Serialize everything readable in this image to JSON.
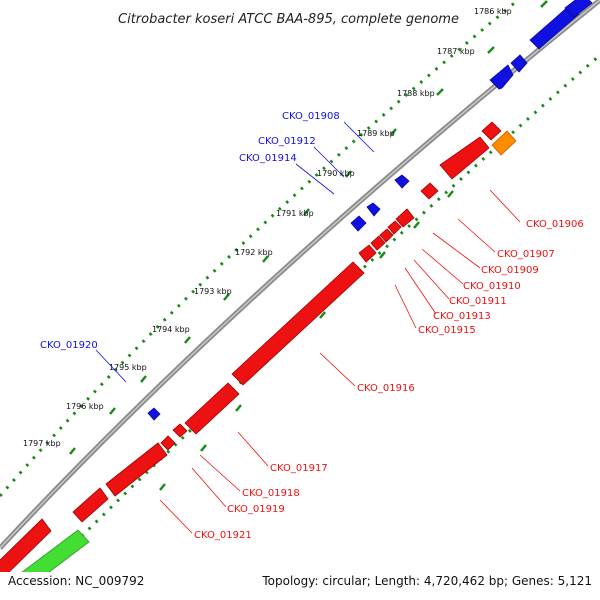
{
  "title": "Citrobacter koseri ATCC BAA-895, complete genome",
  "footer": {
    "accession": "Accession: NC_009792",
    "info": "Topology: circular; Length: 4,720,462 bp; Genes: 5,121"
  },
  "colors": {
    "forward_gene": "#1010e0",
    "reverse_gene": "#ee1111",
    "rna_gene": "#ff8c00",
    "other_gene": "#44dd33",
    "backbone": "#888888",
    "tick": "#1a8a1a"
  },
  "kbp_labels": [
    "1786 kbp",
    "1787 kbp",
    "1788 kbp",
    "1789 kbp",
    "1790 kbp",
    "1791 kbp",
    "1792 kbp",
    "1793 kbp",
    "1794 kbp",
    "1795 kbp",
    "1796 kbp",
    "1797 kbp"
  ],
  "forward_labels": [
    "CKO_01908",
    "CKO_01912",
    "CKO_01914",
    "CKO_01920"
  ],
  "reverse_labels": [
    "CKO_01906",
    "CKO_01907",
    "CKO_01909",
    "CKO_01910",
    "CKO_01911",
    "CKO_01913",
    "CKO_01915",
    "CKO_01916",
    "CKO_01917",
    "CKO_01918",
    "CKO_01919",
    "CKO_01921"
  ]
}
